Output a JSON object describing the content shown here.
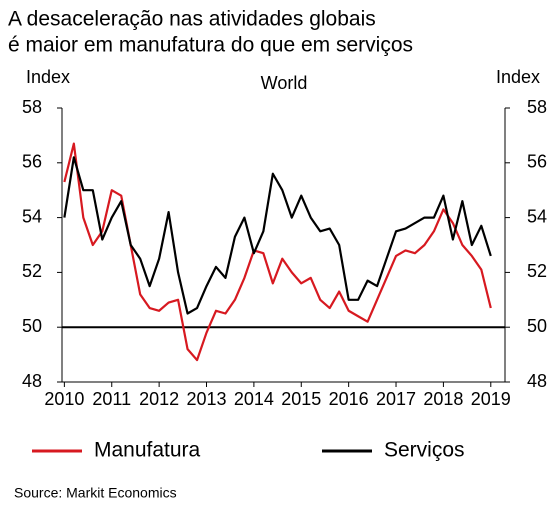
{
  "chart_data": {
    "type": "line",
    "title": [
      "A desaceleração nas atividades globais",
      "é maior em manufatura do que em serviços"
    ],
    "subtitle": "World",
    "ylabel": "Index",
    "y2label": "Index",
    "source": "Source: Markit Economics",
    "x": [
      2010,
      2010.2,
      2010.4,
      2010.6,
      2010.8,
      2011,
      2011.2,
      2011.4,
      2011.6,
      2011.8,
      2012,
      2012.2,
      2012.4,
      2012.6,
      2012.8,
      2013,
      2013.2,
      2013.4,
      2013.6,
      2013.8,
      2014,
      2014.2,
      2014.4,
      2014.6,
      2014.8,
      2015,
      2015.2,
      2015.4,
      2015.6,
      2015.8,
      2016,
      2016.2,
      2016.4,
      2016.6,
      2016.8,
      2017,
      2017.2,
      2017.4,
      2017.6,
      2017.8,
      2018,
      2018.2,
      2018.4,
      2018.6,
      2018.8,
      2019
    ],
    "series": [
      {
        "name": "Manufatura",
        "color": "#d71920",
        "values": [
          55.3,
          56.7,
          54.0,
          53.0,
          53.5,
          55.0,
          54.8,
          53.0,
          51.2,
          50.7,
          50.6,
          50.9,
          51.0,
          49.2,
          48.8,
          49.8,
          50.6,
          50.5,
          51.0,
          51.8,
          52.8,
          52.7,
          51.6,
          52.5,
          52.0,
          51.6,
          51.8,
          51.0,
          50.7,
          51.3,
          50.6,
          50.4,
          50.2,
          51.0,
          51.8,
          52.6,
          52.8,
          52.7,
          53.0,
          53.5,
          54.3,
          53.8,
          53.0,
          52.6,
          52.1,
          50.7
        ]
      },
      {
        "name": "Serviços",
        "color": "#000000",
        "values": [
          54.0,
          56.2,
          55.0,
          55.0,
          53.2,
          54.0,
          54.6,
          53.0,
          52.5,
          51.5,
          52.5,
          54.2,
          52.0,
          50.5,
          50.7,
          51.5,
          52.2,
          51.8,
          53.3,
          54.0,
          52.7,
          53.5,
          55.6,
          55.0,
          54.0,
          54.8,
          54.0,
          53.5,
          53.6,
          53.0,
          51.0,
          51.0,
          51.7,
          51.5,
          52.5,
          53.5,
          53.6,
          53.8,
          54.0,
          54.0,
          54.8,
          53.2,
          54.6,
          53.0,
          53.7,
          52.6
        ]
      }
    ],
    "hline": 50,
    "xlim": [
      2009.95,
      2019.3
    ],
    "xticks": [
      2010,
      2011,
      2012,
      2013,
      2014,
      2015,
      2016,
      2017,
      2018,
      2019
    ],
    "ylim": [
      48,
      58
    ],
    "yticks": [
      48,
      50,
      52,
      54,
      56,
      58
    ],
    "y2lim": [
      48,
      58
    ],
    "y2ticks": [
      48,
      50,
      52,
      54,
      56,
      58
    ]
  }
}
